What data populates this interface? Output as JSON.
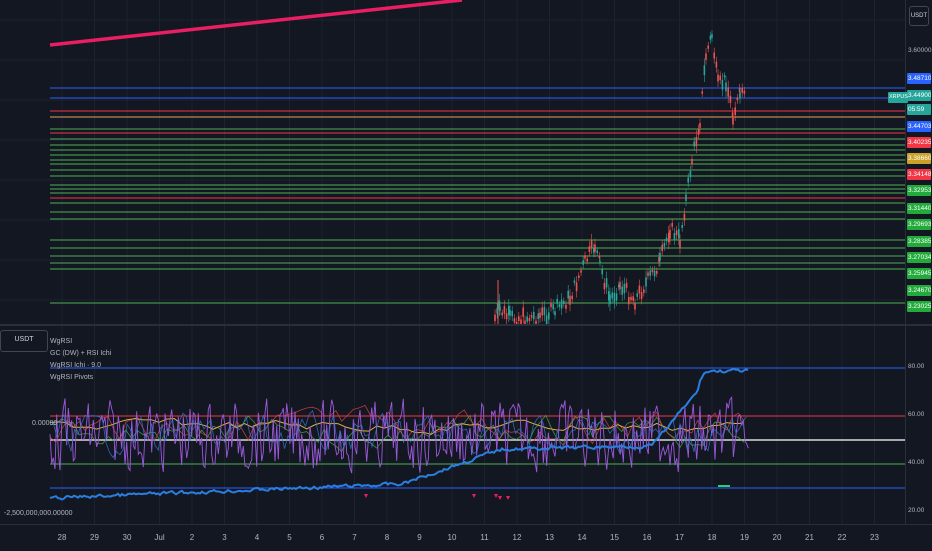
{
  "top_button": "USDT",
  "pane_button": "USDT",
  "main_axis": {
    "top_value": "3.60000",
    "labels": [
      {
        "text": "3.48710",
        "color": "#2962ff"
      },
      {
        "text": "3.44900",
        "color": "#26a69a"
      },
      {
        "text": "05:59",
        "color": "#26a69a"
      },
      {
        "text": "3.44703",
        "color": "#2962ff"
      },
      {
        "text": "3.40235",
        "color": "#f23645"
      },
      {
        "text": "3.38660",
        "color": "#c9a227"
      },
      {
        "text": "3.34148",
        "color": "#f23645"
      },
      {
        "text": "3.32953",
        "color": "#22ab3a"
      },
      {
        "text": "3.31440",
        "color": "#22ab3a"
      },
      {
        "text": "3.29693",
        "color": "#22ab3a"
      },
      {
        "text": "3.28385",
        "color": "#22ab3a"
      },
      {
        "text": "3.27034",
        "color": "#22ab3a"
      },
      {
        "text": "3.25945",
        "color": "#22ab3a"
      },
      {
        "text": "3.24670",
        "color": "#22ab3a"
      },
      {
        "text": "3.23025",
        "color": "#22ab3a"
      }
    ],
    "symbol_tag": "XRPUSDT"
  },
  "legend": [
    "WgRSI",
    "GC (DW) + RSI Ichi",
    "WgRSI Ichi · 9.0",
    "WgRSI Pivots"
  ],
  "rsi_axis": [
    "80.00",
    "60.00",
    "40.00",
    "20.00"
  ],
  "left_values": [
    "0.00000",
    "-2,500,000,000.00000"
  ],
  "time_ticks": [
    "28",
    "29",
    "30",
    "Jul",
    "2",
    "3",
    "4",
    "5",
    "6",
    "7",
    "8",
    "9",
    "10",
    "11",
    "12",
    "13",
    "14",
    "15",
    "16",
    "17",
    "18",
    "19",
    "20",
    "21",
    "22",
    "23"
  ],
  "colors": {
    "background": "#131722",
    "grid": "#1e222d",
    "rsi_purple": "#9c5ad9",
    "obv_blue": "#2a7ee0",
    "level_green": "#4caf50",
    "level_red": "#f23645",
    "level_blue": "#2962ff",
    "pink": "#e91e63"
  }
}
